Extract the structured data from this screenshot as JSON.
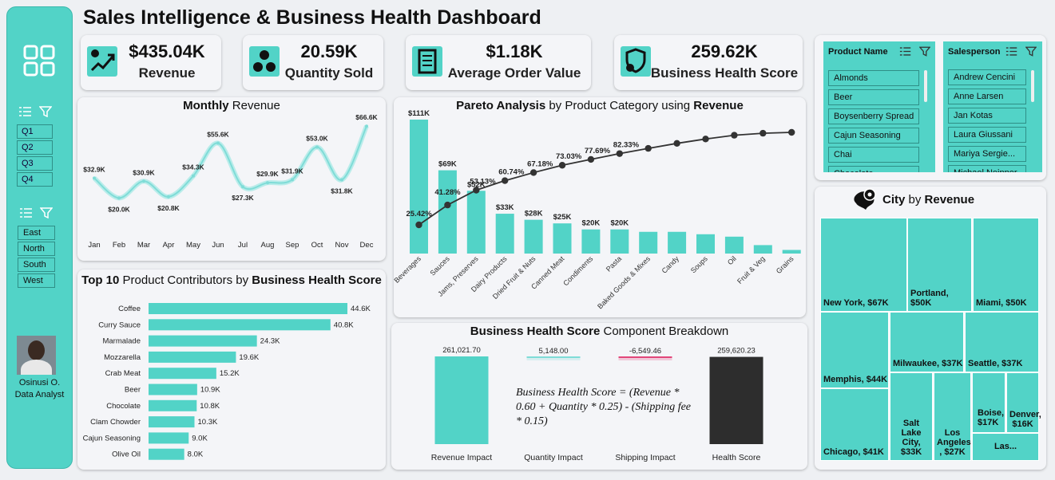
{
  "title": "Sales Intelligence & Business Health Dashboard",
  "sidebar": {
    "quarters": [
      "Q1",
      "Q2",
      "Q3",
      "Q4"
    ],
    "regions": [
      "East",
      "North",
      "South",
      "West"
    ],
    "user_name": "Osinusi O.",
    "user_role": "Data Analyst"
  },
  "kpis": [
    {
      "value": "$435.04K",
      "label": "Revenue"
    },
    {
      "value": "20.59K",
      "label": "Quantity Sold"
    },
    {
      "value": "$1.18K",
      "label": "Average Order Value"
    },
    {
      "value": "259.62K",
      "label": "Business Health Score"
    }
  ],
  "monthly": {
    "title_bold": "Monthly",
    "title_rest": " Revenue"
  },
  "pareto": {
    "title_b1": "Pareto Analysis",
    "title_mid": " by Product Category using ",
    "title_b2": "Revenue"
  },
  "top10": {
    "title_b1": "Top 10",
    "title_mid": " Product Contributors by ",
    "title_b2": "Business Health Score"
  },
  "breakdown": {
    "title_b1": "Business Health Score",
    "title_rest": " Component Breakdown",
    "formula": "Business Health Score = (Revenue * 0.60 + Quantity * 0.25) - (Shipping fee * 0.15)"
  },
  "slicers": {
    "product_title": "Product Name",
    "products": [
      "Almonds",
      "Beer",
      "Boysenberry Spread",
      "Cajun Seasoning",
      "Chai",
      "Chocolate"
    ],
    "salesperson_title": "Salesperson",
    "salespeople": [
      "Andrew Cencini",
      "Anne Larsen",
      "Jan Kotas",
      "Laura Giussani",
      "Mariya Sergie...",
      "Michael Neipper"
    ]
  },
  "city": {
    "title_b1": "City",
    "title_mid": " by ",
    "title_b2": "Revenue",
    "cells": [
      {
        "label": "New York, $67K"
      },
      {
        "label": "Portland, $50K"
      },
      {
        "label": "Miami, $50K"
      },
      {
        "label": "Memphis, $44K"
      },
      {
        "label": "Milwaukee, $37K"
      },
      {
        "label": "Seattle, $37K"
      },
      {
        "label": "Chicago, $41K"
      },
      {
        "label": "Salt Lake City, $33K"
      },
      {
        "label": "Los Angeles , $27K"
      },
      {
        "label": "Boise, $17K"
      },
      {
        "label": "Denver, $16K"
      },
      {
        "label": "Las..."
      }
    ]
  },
  "colors": {
    "accent": "#52d3c7",
    "dark": "#2d2d2d",
    "line": "#333333",
    "pink": "#e2477a"
  },
  "chart_data": [
    {
      "type": "line",
      "categories": [
        "Jan",
        "Feb",
        "Mar",
        "Apr",
        "May",
        "Jun",
        "Jul",
        "Aug",
        "Sep",
        "Oct",
        "Nov",
        "Dec"
      ],
      "values": [
        32.9,
        20.0,
        30.9,
        20.8,
        34.3,
        55.6,
        27.3,
        29.9,
        31.9,
        53.0,
        31.8,
        66.6
      ],
      "labels": [
        "$32.9K",
        "$20.0K",
        "$30.9K",
        "$20.8K",
        "$34.3K",
        "$55.6K",
        "$27.3K",
        "$29.9K",
        "$31.9K",
        "$53.0K",
        "$31.8K",
        "$66.6K"
      ],
      "ylim": [
        0,
        75
      ]
    },
    {
      "type": "bar",
      "categories": [
        "Beverages",
        "Sauces",
        "Jams, Preserves",
        "Dairy Products",
        "Dried Fruit & Nuts",
        "Canned Meat",
        "Condiments",
        "Pasta",
        "Baked Goods & Mixes",
        "Candy",
        "Soups",
        "Oil",
        "Fruit & Veg",
        "Grains"
      ],
      "values": [
        111,
        69,
        52,
        33,
        28,
        25,
        20,
        20,
        18,
        18,
        16,
        14,
        7,
        3
      ],
      "bar_labels": [
        "$111K",
        "$69K",
        "$52K",
        "$33K",
        "$28K",
        "$25K",
        "$20K",
        "$20K",
        "",
        "",
        "",
        "",
        "",
        ""
      ],
      "cumulative": [
        25.42,
        41.28,
        53.13,
        60.74,
        67.18,
        73.03,
        77.69,
        82.33,
        86.5,
        90.5,
        94.0,
        97.0,
        98.6,
        99.3
      ],
      "cumulative_labels": [
        "25.42%",
        "41.28%",
        "53.13%",
        "60.74%",
        "67.18%",
        "73.03%",
        "77.69%",
        "82.33%",
        "",
        "",
        "",
        "",
        "",
        ""
      ]
    },
    {
      "type": "bar",
      "orientation": "horizontal",
      "categories": [
        "Coffee",
        "Curry Sauce",
        "Marmalade",
        "Mozzarella",
        "Crab Meat",
        "Beer",
        "Chocolate",
        "Clam Chowder",
        "Cajun Seasoning",
        "Olive Oil"
      ],
      "values": [
        44.6,
        40.8,
        24.3,
        19.6,
        15.2,
        10.9,
        10.8,
        10.3,
        9.0,
        8.0
      ],
      "labels": [
        "44.6K",
        "40.8K",
        "24.3K",
        "19.6K",
        "15.2K",
        "10.9K",
        "10.8K",
        "10.3K",
        "9.0K",
        "8.0K"
      ]
    },
    {
      "type": "bar",
      "categories": [
        "Revenue Impact",
        "Quantity Impact",
        "Shipping Impact",
        "Health Score"
      ],
      "values": [
        261021.7,
        5148.0,
        -6549.46,
        259620.23
      ],
      "labels": [
        "261,021.70",
        "5,148.00",
        "-6,549.46",
        "259,620.23"
      ]
    }
  ]
}
